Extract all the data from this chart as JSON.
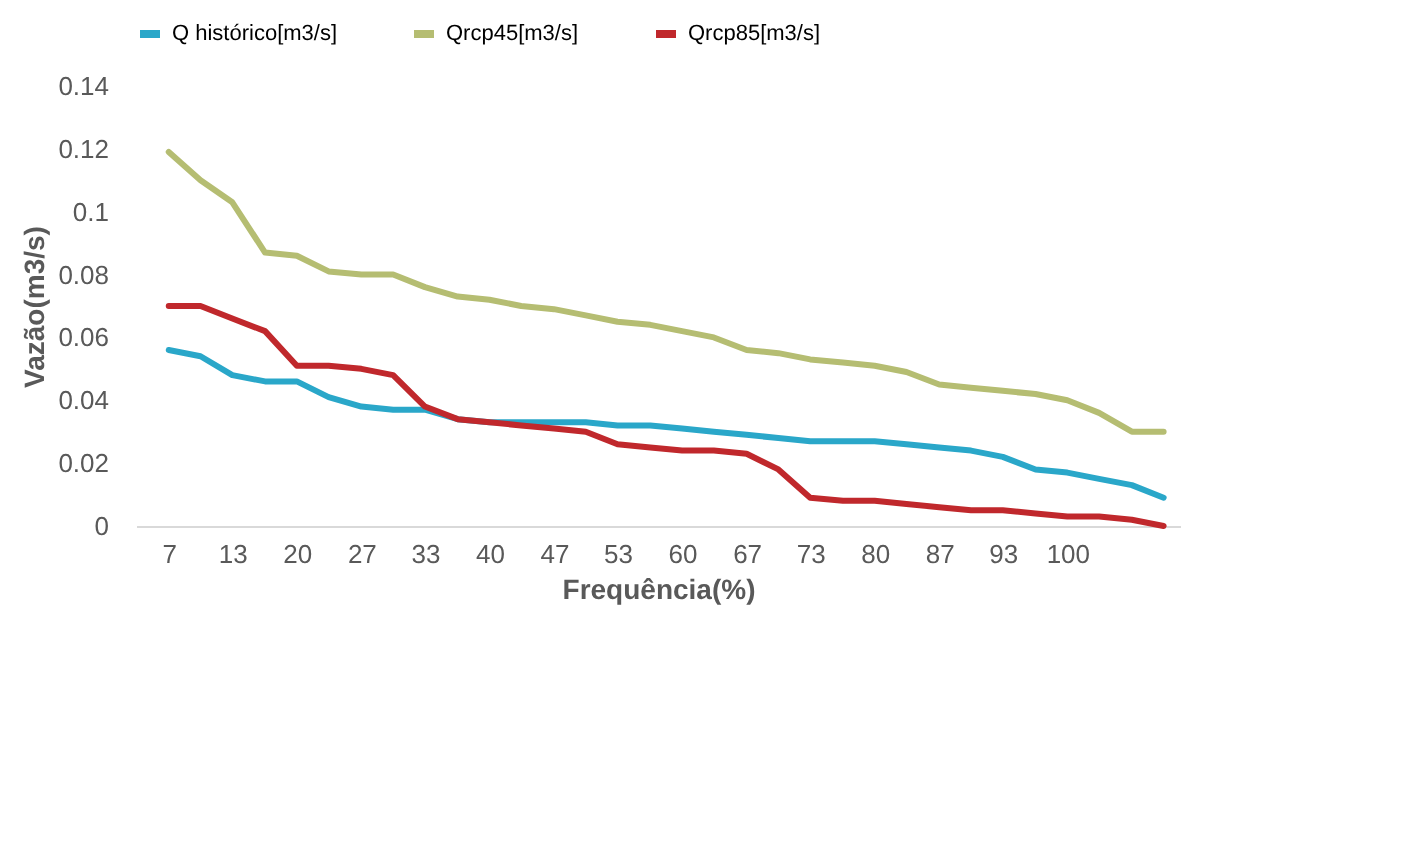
{
  "chart_data": {
    "type": "line",
    "xlabel": "Frequência(%)",
    "ylabel": "Vazão(m3/s)",
    "x": [
      6.7,
      10,
      13.3,
      16.7,
      20,
      23.3,
      26.7,
      30,
      33.3,
      36.7,
      40,
      43.3,
      46.7,
      50,
      53.3,
      56.7,
      60,
      63.3,
      66.7,
      70,
      73.3,
      76.7,
      80,
      83.3,
      86.7,
      90,
      93.3,
      96.7,
      100,
      103.3,
      106.7,
      110
    ],
    "xlim": [
      3.3,
      111.7
    ],
    "xticks": [
      {
        "value": 6.7,
        "label": "7"
      },
      {
        "value": 13.3,
        "label": "13"
      },
      20,
      {
        "value": 26.7,
        "label": "27"
      },
      {
        "value": 33.3,
        "label": "33"
      },
      40,
      {
        "value": 46.7,
        "label": "47"
      },
      {
        "value": 53.3,
        "label": "53"
      },
      60,
      {
        "value": 66.7,
        "label": "67"
      },
      {
        "value": 73.3,
        "label": "73"
      },
      80,
      {
        "value": 86.7,
        "label": "87"
      },
      {
        "value": 93.3,
        "label": "93"
      },
      100
    ],
    "ylim": [
      0,
      0.14
    ],
    "yticks": [
      0,
      0.02,
      0.04,
      0.06,
      0.08,
      0.1,
      0.12,
      0.14
    ],
    "grid": false,
    "legend": "top",
    "line_style": "solid",
    "marker": "none",
    "series": [
      {
        "name": "Q histórico[m3/s]",
        "color": "#2aa7c9",
        "values": [
          0.056,
          0.054,
          0.048,
          0.046,
          0.046,
          0.041,
          0.038,
          0.037,
          0.037,
          0.034,
          0.033,
          0.033,
          0.033,
          0.033,
          0.032,
          0.032,
          0.031,
          0.03,
          0.029,
          0.028,
          0.027,
          0.027,
          0.027,
          0.026,
          0.025,
          0.024,
          0.022,
          0.018,
          0.017,
          0.015,
          0.013,
          0.009
        ]
      },
      {
        "name": "Qrcp45[m3/s]",
        "color": "#b5bd72",
        "values": [
          0.119,
          0.11,
          0.103,
          0.087,
          0.086,
          0.081,
          0.08,
          0.08,
          0.076,
          0.073,
          0.072,
          0.07,
          0.069,
          0.067,
          0.065,
          0.064,
          0.062,
          0.06,
          0.056,
          0.055,
          0.053,
          0.052,
          0.051,
          0.049,
          0.045,
          0.044,
          0.043,
          0.042,
          0.04,
          0.036,
          0.03,
          0.03
        ]
      },
      {
        "name": "Qrcp85[m3/s]",
        "color": "#c0282c",
        "values": [
          0.07,
          0.07,
          0.066,
          0.062,
          0.051,
          0.051,
          0.05,
          0.048,
          0.038,
          0.034,
          0.033,
          0.032,
          0.031,
          0.03,
          0.026,
          0.025,
          0.024,
          0.024,
          0.023,
          0.018,
          0.009,
          0.008,
          0.008,
          0.007,
          0.006,
          0.005,
          0.005,
          0.004,
          0.003,
          0.003,
          0.002,
          0.0
        ]
      }
    ]
  }
}
